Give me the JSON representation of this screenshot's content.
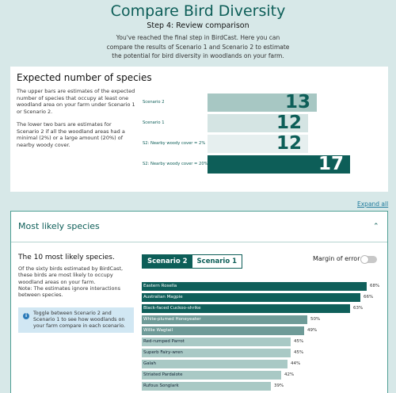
{
  "header": {
    "title": "Compare Bird Diversity",
    "step": "Step 4: Review comparison",
    "intro": "You've reached the final step in BirdCast. Here you can compare the results of Scenario 1 and Scenario 2 to estimate the potential for bird diversity in woodlands on your farm."
  },
  "expected": {
    "title": "Expected number of species",
    "desc1": "The upper bars are estimates of the expected number of species that occupy at least one woodland area on your farm under Scenario 1 or Scenario 2.",
    "desc2": "The lower two bars are estimates for Scenario 2 if all the woodland areas had a minimal (2%) or a large amount (20%) of nearby woody cover.",
    "scale_max": 17,
    "bars": [
      {
        "label": "Scenario 2",
        "value": 13,
        "color": "#a7c7c3",
        "text_color": "#0d5e58"
      },
      {
        "label": "Scenario 1",
        "value": 12,
        "color": "#d4e4e3",
        "text_color": "#0d5e58"
      },
      {
        "label": "S2: Nearby woody cover = 2%",
        "value": 12,
        "color": "#e6efef",
        "text_color": "#0d5e58"
      },
      {
        "label": "S2: Nearby woody cover = 20%",
        "value": 17,
        "color": "#0d5e58",
        "text_color": "#ffffff"
      }
    ]
  },
  "expand_all": "Expand all",
  "likely": {
    "title": "Most likely species",
    "subtitle": "The 10 most likely species.",
    "desc": "Of the sixty birds estimated by BirdCast, these birds are most likely to occupy woodland areas on your farm.",
    "note": "Note: The estimates ignore interactions between species.",
    "info": "Toggle between Scenario 2 and Scenario 1 to see how woodlands on your farm compare in each scenario.",
    "tabs": [
      "Scenario 2",
      "Scenario 1"
    ],
    "margin_label": "Margin of error",
    "species": [
      {
        "name": "Eastern Rosella",
        "pct": 68,
        "label": "68%"
      },
      {
        "name": "Australian Magpie",
        "pct": 66,
        "label": "66%"
      },
      {
        "name": "Black-faced Cuckoo-shrike",
        "pct": 63,
        "label": "63%"
      },
      {
        "name": "White-plumed Honeyeater",
        "pct": 50,
        "label": "50%"
      },
      {
        "name": "Willie Wagtail",
        "pct": 49,
        "label": "49%"
      },
      {
        "name": "Red-rumped Parrot",
        "pct": 45,
        "label": "45%"
      },
      {
        "name": "Superb Fairy-wren",
        "pct": 45,
        "label": "45%"
      },
      {
        "name": "Galah",
        "pct": 44,
        "label": "44%"
      },
      {
        "name": "Striated Pardalote",
        "pct": 42,
        "label": "42%"
      },
      {
        "name": "Rufous Songlark",
        "pct": 39,
        "label": "39%"
      }
    ]
  },
  "colors": {
    "brand": "#0d5e58",
    "bar_dark": "#0f5f5a",
    "bar_mid": "#6f9b98",
    "bar_light": "#a9c9c5"
  }
}
